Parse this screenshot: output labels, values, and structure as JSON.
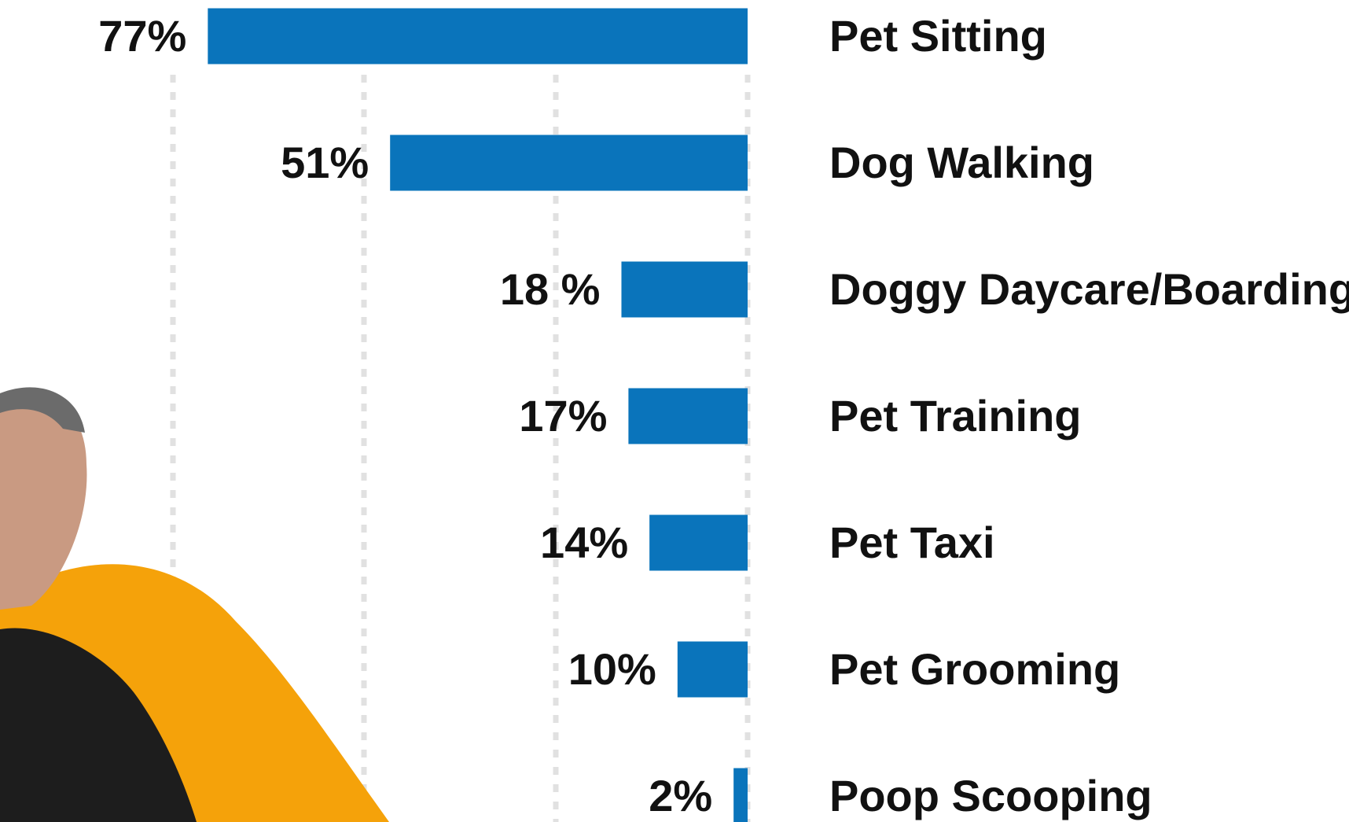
{
  "chart_data": {
    "type": "bar",
    "orientation": "horizontal",
    "categories": [
      "Pet Sitting",
      "Dog Walking",
      "Doggy Daycare/Boarding",
      "Pet Training",
      "Pet Taxi",
      "Pet Grooming",
      "Poop Scooping"
    ],
    "values": [
      77,
      51,
      18,
      17,
      14,
      10,
      2
    ],
    "value_labels": [
      "77%",
      "51%",
      "18 %",
      "17%",
      "14%",
      "10%",
      "2%"
    ],
    "color": "#0a74bb",
    "xlim": [
      0,
      85
    ]
  }
}
